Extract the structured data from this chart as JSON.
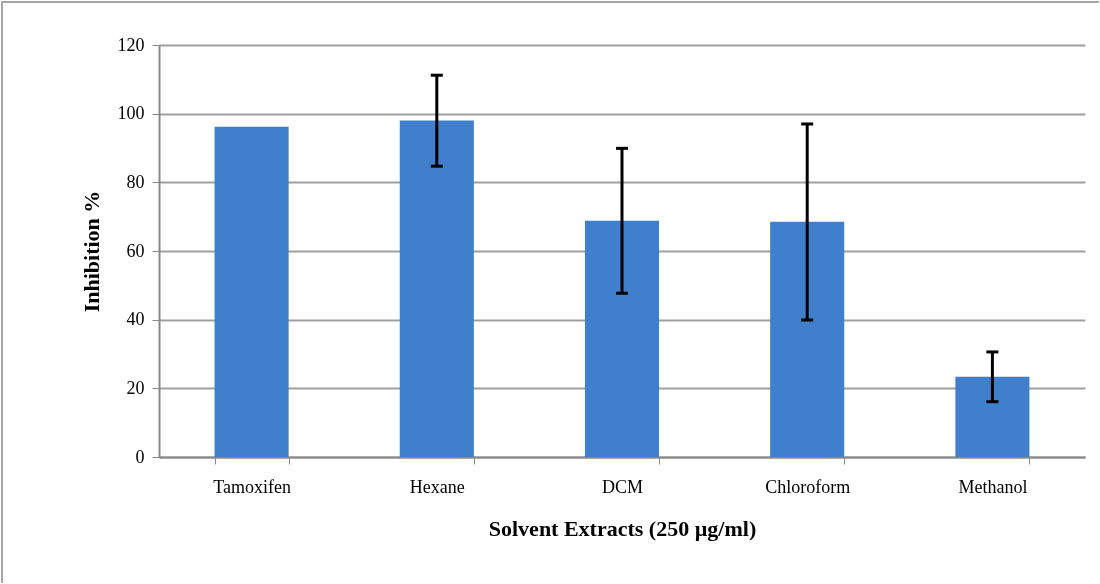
{
  "chart_data": {
    "type": "bar",
    "xlabel": "Solvent Extracts (250 µg/ml)",
    "ylabel": "Inhibition %",
    "categories": [
      "Tamoxifen",
      "Hexane",
      "DCM",
      "Chloroform",
      "Methanol"
    ],
    "values": [
      96.2,
      98.0,
      68.8,
      68.5,
      23.4
    ],
    "errors": [
      null,
      [
        84.7,
        111.2
      ],
      [
        47.7,
        89.9
      ],
      [
        39.9,
        97.0
      ],
      [
        16.1,
        30.6
      ]
    ],
    "color": "#3f7fcc",
    "ylim": [
      0,
      120
    ],
    "yticks": [
      0,
      20,
      40,
      60,
      80,
      100,
      120
    ],
    "grid": "y"
  }
}
